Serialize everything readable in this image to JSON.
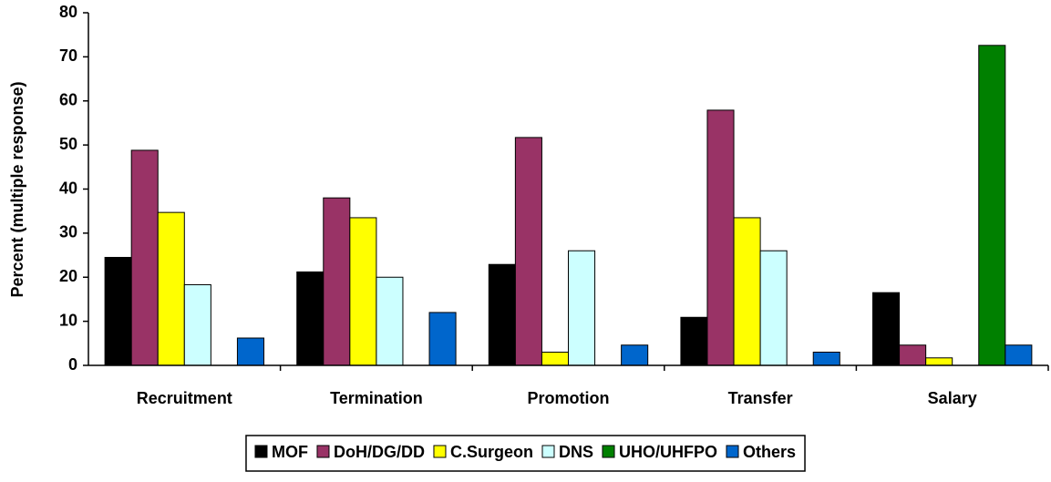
{
  "chart_data": {
    "type": "bar",
    "y_label": "Percent (multiple response)",
    "categories": [
      "Recruitment",
      "Termination",
      "Promotion",
      "Transfer",
      "Salary"
    ],
    "series": [
      {
        "name": "MOF",
        "color": "#000000",
        "values": [
          24.5,
          21.2,
          22.9,
          10.9,
          16.5
        ]
      },
      {
        "name": "DoH/DG/DD",
        "color": "#993366",
        "values": [
          48.8,
          38,
          51.7,
          57.9,
          4.6
        ]
      },
      {
        "name": "C.Surgeon",
        "color": "#ffff00",
        "values": [
          34.7,
          33.5,
          3,
          33.5,
          1.7
        ]
      },
      {
        "name": "DNS",
        "color": "#ccffff",
        "values": [
          18.3,
          20,
          26,
          26,
          0
        ]
      },
      {
        "name": "UHO/UHFPO",
        "color": "#008000",
        "values": [
          0,
          0,
          0,
          0,
          72.6
        ]
      },
      {
        "name": "Others",
        "color": "#0066cc",
        "values": [
          6.2,
          12,
          4.6,
          3,
          4.6
        ]
      }
    ],
    "ylim": [
      0,
      80
    ],
    "yticks": [
      0,
      10,
      20,
      30,
      40,
      50,
      60,
      70,
      80
    ],
    "legend": "bottom"
  }
}
